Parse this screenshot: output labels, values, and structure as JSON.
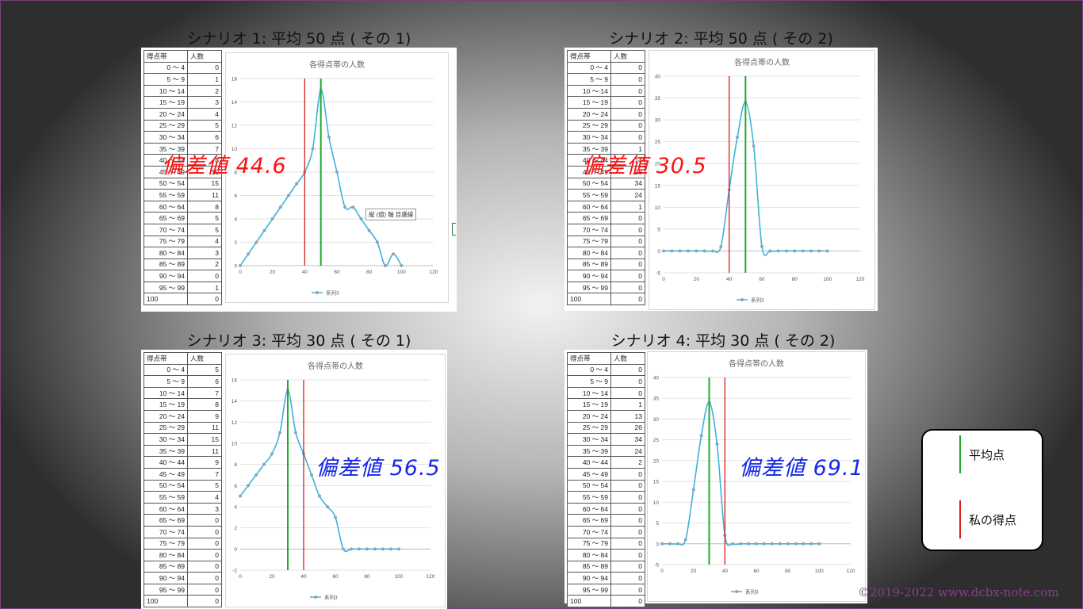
{
  "table_headers": {
    "range": "得点帯",
    "count": "人数"
  },
  "score_ranges": [
    "0 ～ 4",
    "5 ～ 9",
    "10 ～ 14",
    "15 ～ 19",
    "20 ～ 24",
    "25 ～ 29",
    "30 ～ 34",
    "35 ～ 39",
    "40 ～ 44",
    "45 ～ 49",
    "50 ～ 54",
    "55 ～ 59",
    "60 ～ 64",
    "65 ～ 69",
    "70 ～ 74",
    "75 ～ 79",
    "80 ～ 84",
    "85 ～ 89",
    "90 ～ 94",
    "95 ～ 99",
    "100"
  ],
  "panels": [
    {
      "title": "シナリオ 1: 平均 50 点 ( その 1)",
      "deviation": "偏差値 44.6",
      "counts": [
        "0",
        "1",
        "2",
        "3",
        "4",
        "5",
        "6",
        "7",
        "8",
        "10",
        "15",
        "11",
        "8",
        "5",
        "5",
        "4",
        "3",
        "2",
        "0",
        "1",
        "0"
      ],
      "tooltip": "縦 (値) 軸 目盛線"
    },
    {
      "title": "シナリオ 2: 平均 50 点 ( その 2)",
      "deviation": "偏差値 30.5",
      "counts": [
        "0",
        "0",
        "0",
        "0",
        "0",
        "0",
        "0",
        "1",
        "14",
        "26",
        "34",
        "24",
        "1",
        "0",
        "0",
        "0",
        "0",
        "0",
        "0",
        "0",
        "0"
      ]
    },
    {
      "title": "シナリオ 3: 平均 30 点 ( その 1)",
      "deviation": "偏差値 56.5",
      "counts": [
        "5",
        "6",
        "7",
        "8",
        "9",
        "11",
        "15",
        "11",
        "9",
        "7",
        "5",
        "4",
        "3",
        "0",
        "0",
        "0",
        "0",
        "0",
        "0",
        "0",
        "0"
      ]
    },
    {
      "title": "シナリオ 4: 平均 30 点 ( その 2)",
      "deviation": "偏差値 69.1",
      "counts": [
        "0",
        "0",
        "0",
        "1",
        "13",
        "26",
        "34",
        "24",
        "2",
        "0",
        "0",
        "0",
        "0",
        "0",
        "0",
        "0",
        "0",
        "0",
        "0",
        "0",
        "0"
      ]
    }
  ],
  "chart_data": [
    {
      "type": "line",
      "title": "各得点帯の人数",
      "x": [
        0,
        5,
        10,
        15,
        20,
        25,
        30,
        35,
        40,
        45,
        50,
        55,
        60,
        65,
        70,
        75,
        80,
        85,
        90,
        95,
        100
      ],
      "series": [
        {
          "name": "系列3",
          "values": [
            0,
            1,
            2,
            3,
            4,
            5,
            6,
            7,
            8,
            10,
            15,
            11,
            8,
            5,
            5,
            4,
            3,
            2,
            0,
            1,
            0
          ]
        }
      ],
      "xlim": [
        0,
        120
      ],
      "ylim": [
        0,
        16
      ],
      "xticks": [
        0,
        20,
        40,
        60,
        80,
        100,
        120
      ],
      "yticks": [
        0,
        2,
        4,
        6,
        8,
        10,
        12,
        14,
        16
      ],
      "mean_line_x": 50,
      "my_score_line_x": 40
    },
    {
      "type": "line",
      "title": "各得点帯の人数",
      "x": [
        0,
        5,
        10,
        15,
        20,
        25,
        30,
        35,
        40,
        45,
        50,
        55,
        60,
        65,
        70,
        75,
        80,
        85,
        90,
        95,
        100
      ],
      "series": [
        {
          "name": "系列3",
          "values": [
            0,
            0,
            0,
            0,
            0,
            0,
            0,
            1,
            14,
            26,
            34,
            24,
            1,
            0,
            0,
            0,
            0,
            0,
            0,
            0,
            0
          ]
        }
      ],
      "xlim": [
        0,
        120
      ],
      "ylim": [
        -5,
        40
      ],
      "xticks": [
        0,
        20,
        40,
        60,
        80,
        100,
        120
      ],
      "yticks": [
        -5,
        0,
        5,
        10,
        15,
        20,
        25,
        30,
        35,
        40
      ],
      "mean_line_x": 50,
      "my_score_line_x": 40
    },
    {
      "type": "line",
      "title": "各得点帯の人数",
      "x": [
        0,
        5,
        10,
        15,
        20,
        25,
        30,
        35,
        40,
        45,
        50,
        55,
        60,
        65,
        70,
        75,
        80,
        85,
        90,
        95,
        100
      ],
      "series": [
        {
          "name": "系列3",
          "values": [
            5,
            6,
            7,
            8,
            9,
            11,
            15,
            11,
            9,
            7,
            5,
            4,
            3,
            0,
            0,
            0,
            0,
            0,
            0,
            0,
            0
          ]
        }
      ],
      "xlim": [
        0,
        120
      ],
      "ylim": [
        -2,
        16
      ],
      "xticks": [
        0,
        20,
        40,
        60,
        80,
        100,
        120
      ],
      "yticks": [
        -2,
        0,
        2,
        4,
        6,
        8,
        10,
        12,
        14,
        16
      ],
      "mean_line_x": 30,
      "my_score_line_x": 40
    },
    {
      "type": "line",
      "title": "各得点帯の人数",
      "x": [
        0,
        5,
        10,
        15,
        20,
        25,
        30,
        35,
        40,
        45,
        50,
        55,
        60,
        65,
        70,
        75,
        80,
        85,
        90,
        95,
        100
      ],
      "series": [
        {
          "name": "系列3",
          "values": [
            0,
            0,
            0,
            1,
            13,
            26,
            34,
            24,
            2,
            0,
            0,
            0,
            0,
            0,
            0,
            0,
            0,
            0,
            0,
            0,
            0
          ]
        }
      ],
      "xlim": [
        0,
        120
      ],
      "ylim": [
        -5,
        40
      ],
      "xticks": [
        0,
        20,
        40,
        60,
        80,
        100,
        120
      ],
      "yticks": [
        -5,
        0,
        5,
        10,
        15,
        20,
        25,
        30,
        35,
        40
      ],
      "mean_line_x": 30,
      "my_score_line_x": 40
    }
  ],
  "legend": {
    "mean_label": "平均点",
    "my_score_label": "私の得点"
  },
  "colors": {
    "series": "#3cb4dc",
    "marker": "#8fa4b8",
    "mean_line": "#1faa2e",
    "my_score_line": "#d81e1e"
  },
  "copyright": "©2019-2022 www.dcbx-note.com"
}
